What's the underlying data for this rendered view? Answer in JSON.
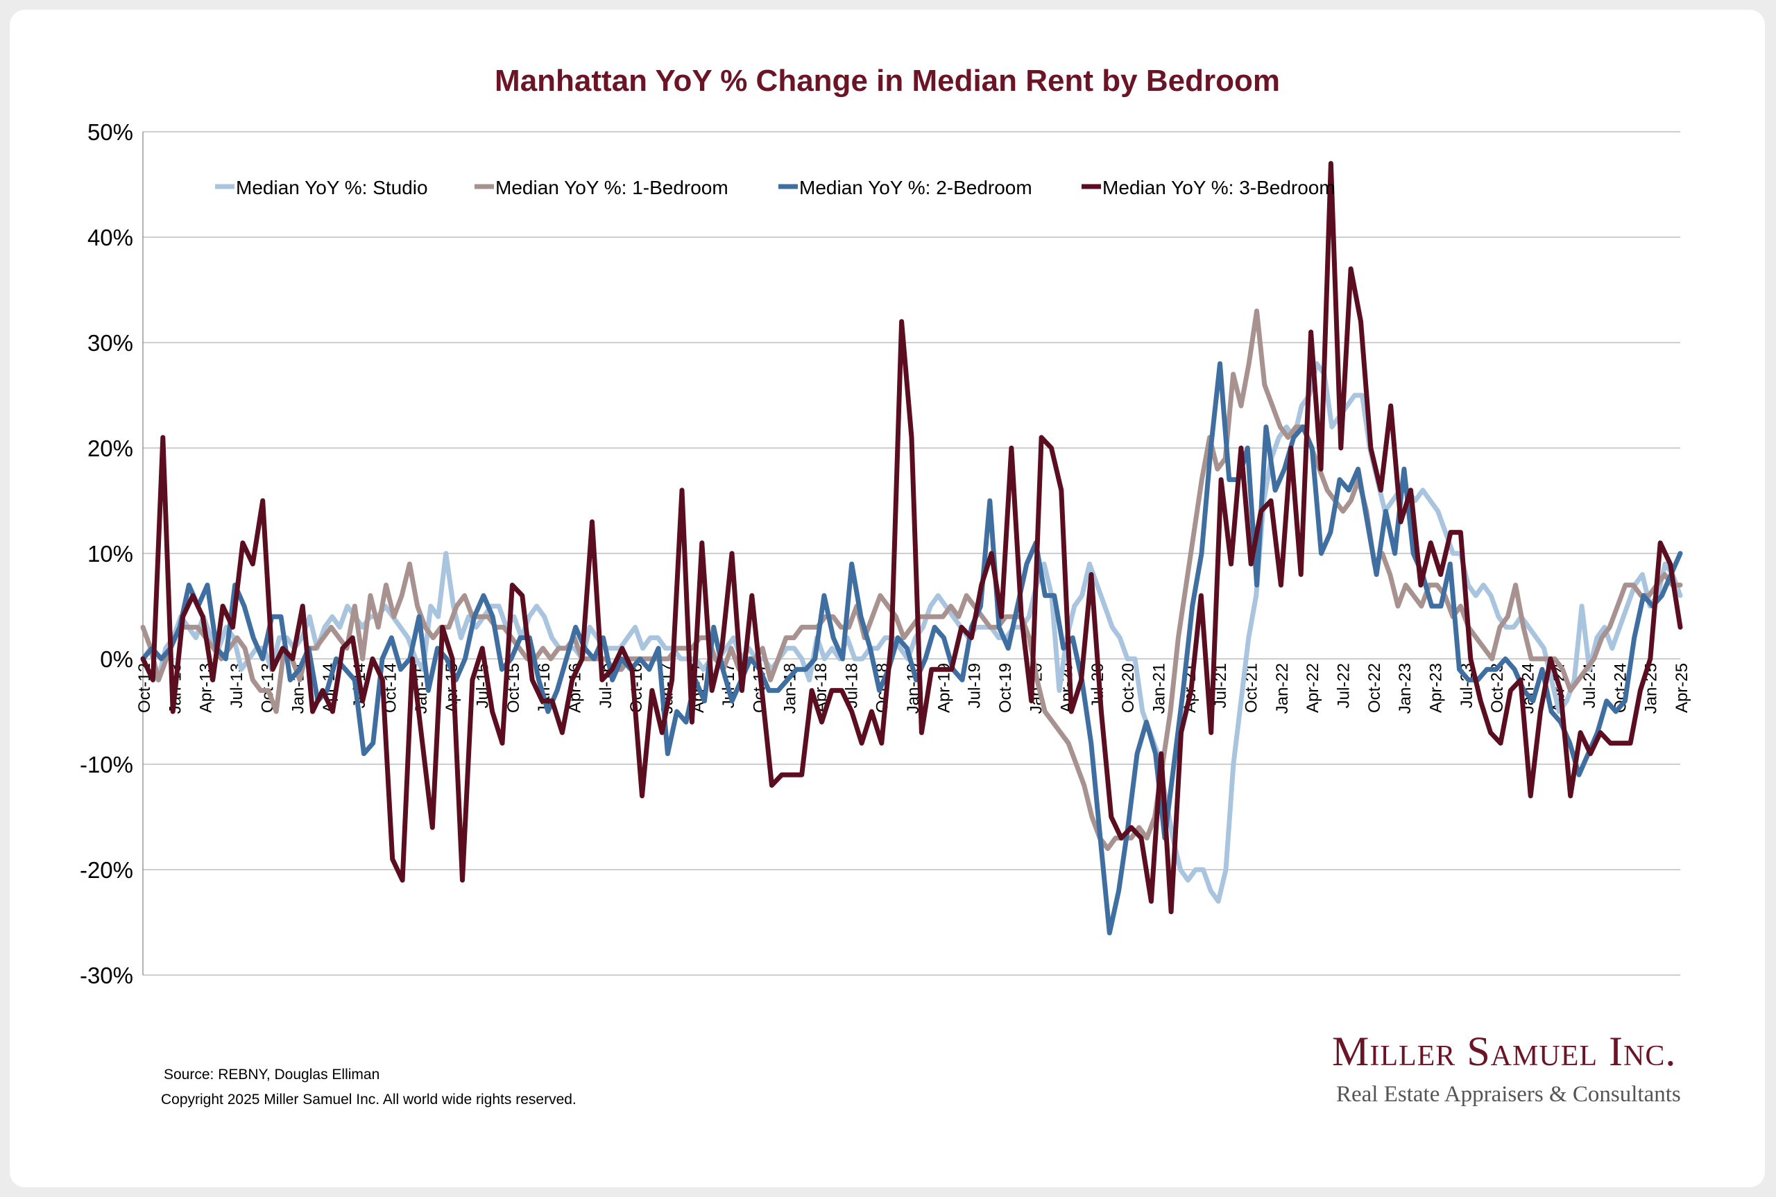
{
  "title": "Manhattan YoY % Change in Median Rent by Bedroom",
  "source": "Source: REBNY, Douglas Elliman",
  "copyright": "Copyright 2025 Miller Samuel Inc.  All world wide rights reserved.",
  "logo": {
    "name": "Miller Samuel Inc.",
    "tagline": "Real Estate Appraisers & Consultants"
  },
  "chart_data": {
    "type": "line",
    "title": "Manhattan YoY % Change in Median Rent by Bedroom",
    "xlabel": "",
    "ylabel": "",
    "ylim": [
      -30,
      50
    ],
    "y_ticks": [
      50,
      40,
      30,
      20,
      10,
      0,
      -10,
      -20,
      -30
    ],
    "y_tick_labels": [
      "50%",
      "40%",
      "30%",
      "20%",
      "10%",
      "0%",
      "-10%",
      "-20%",
      "-30%"
    ],
    "grid": true,
    "legend_position": "top",
    "x_start": "Oct-12",
    "x_end": "Apr-25",
    "x_tick_labels": [
      "Oct-12",
      "Jan-13",
      "Apr-13",
      "Jul-13",
      "Oct-13",
      "Jan-14",
      "Apr-14",
      "Jul-14",
      "Oct-14",
      "Jan-15",
      "Apr-15",
      "Jul-15",
      "Oct-15",
      "Jan-16",
      "Apr-16",
      "Jul-16",
      "Oct-16",
      "Jan-17",
      "Apr-17",
      "Jul-17",
      "Oct-17",
      "Jan-18",
      "Apr-18",
      "Jul-18",
      "Oct-18",
      "Jan-19",
      "Apr-19",
      "Jul-19",
      "Oct-19",
      "Jan-20",
      "Apr-20",
      "Jul-20",
      "Oct-20",
      "Jan-21",
      "Apr-21",
      "Jul-21",
      "Oct-21",
      "Jan-22",
      "Apr-22",
      "Jul-22",
      "Oct-22",
      "Jan-23",
      "Apr-23",
      "Jul-23",
      "Oct-23",
      "Jan-24",
      "Apr-24",
      "Jul-24",
      "Oct-24",
      "Jan-25",
      "Apr-25"
    ],
    "series": [
      {
        "name": "Median YoY %: Studio",
        "color": "#a9c4de",
        "values": [
          0,
          1,
          -2,
          1,
          2,
          4,
          3,
          2,
          4,
          2,
          1,
          3,
          2,
          -1,
          0,
          1,
          1,
          -1,
          2,
          2,
          1,
          2,
          4,
          1,
          3,
          4,
          3,
          5,
          4,
          3,
          4,
          4,
          5,
          4,
          3,
          2,
          0,
          -1,
          5,
          4,
          10,
          5,
          2,
          4,
          3,
          4,
          5,
          5,
          3,
          4,
          2,
          4,
          5,
          4,
          2,
          1,
          1,
          1,
          0,
          3,
          2,
          1,
          1,
          1,
          2,
          3,
          1,
          2,
          2,
          1,
          1,
          0,
          0,
          0,
          -1,
          0,
          0,
          1,
          2,
          0,
          1,
          0,
          0,
          -1,
          0,
          1,
          1,
          0,
          -2,
          2,
          0,
          1,
          0,
          2,
          0,
          0,
          1,
          1,
          2,
          2,
          1,
          0,
          2,
          3,
          5,
          6,
          5,
          4,
          3,
          2,
          3,
          3,
          3,
          2,
          2,
          3,
          3,
          4,
          7,
          9,
          6,
          -3,
          2,
          5,
          6,
          9,
          7,
          5,
          3,
          2,
          0,
          0,
          -5,
          -7,
          -9,
          -13,
          -17,
          -20,
          -21,
          -20,
          -20,
          -22,
          -23,
          -20,
          -10,
          -4,
          2,
          6,
          15,
          19,
          21,
          22,
          21,
          24,
          25,
          28,
          27,
          22,
          23,
          24,
          25,
          25,
          20,
          17,
          14,
          15,
          16,
          16,
          15,
          16,
          15,
          14,
          12,
          10,
          10,
          7,
          6,
          7,
          6,
          4,
          3,
          3,
          4,
          3,
          2,
          1,
          -2,
          -5,
          -4,
          -2,
          5,
          -1,
          2,
          3,
          1,
          3,
          5,
          7,
          8,
          5,
          6,
          9,
          8,
          6
        ],
        "x_tick_index_step": 3
      },
      {
        "name": "Median YoY %: 1-Bedroom",
        "color": "#a89290",
        "values": [
          3,
          1,
          -2,
          0,
          2,
          3,
          3,
          3,
          2,
          1,
          0,
          1,
          2,
          1,
          -2,
          -3,
          -3,
          -5,
          1,
          0,
          -2,
          1,
          1,
          2,
          3,
          2,
          1,
          5,
          0,
          6,
          3,
          7,
          4,
          6,
          9,
          5,
          3,
          2,
          3,
          3,
          5,
          6,
          4,
          4,
          4,
          3,
          3,
          2,
          1,
          0,
          0,
          1,
          0,
          1,
          1,
          2,
          0,
          0,
          0,
          0,
          -1,
          -1,
          0,
          0,
          0,
          0,
          0,
          0,
          1,
          1,
          1,
          2,
          2,
          0,
          -1,
          1,
          -1,
          0,
          0,
          1,
          -2,
          0,
          2,
          2,
          3,
          3,
          3,
          4,
          4,
          3,
          3,
          5,
          2,
          4,
          6,
          5,
          4,
          2,
          3,
          4,
          4,
          4,
          4,
          5,
          4,
          6,
          5,
          4,
          3,
          3,
          4,
          4,
          4,
          2,
          -2,
          -5,
          -6,
          -7,
          -8,
          -10,
          -12,
          -15,
          -17,
          -18,
          -17,
          -17,
          -17,
          -16,
          -17,
          -15,
          -10,
          -5,
          2,
          7,
          12,
          17,
          21,
          18,
          19,
          27,
          24,
          28,
          33,
          26,
          24,
          22,
          21,
          22,
          22,
          20,
          18,
          16,
          15,
          14,
          15,
          17,
          14,
          9,
          10,
          8,
          5,
          7,
          6,
          5,
          7,
          7,
          6,
          4,
          5,
          3,
          2,
          1,
          0,
          3,
          4,
          7,
          3,
          0,
          0,
          0,
          0,
          -1,
          -3,
          -2,
          -1,
          0,
          2,
          3,
          5,
          7,
          7,
          6,
          6,
          7,
          8,
          7,
          7
        ],
        "x_tick_index_step": 3
      },
      {
        "name": "Median YoY %: 2-Bedroom",
        "color": "#3f6fa0",
        "values": [
          0,
          1,
          0,
          1,
          3,
          7,
          5,
          7,
          1,
          0,
          7,
          5,
          2,
          0,
          4,
          4,
          -2,
          -1,
          1,
          -4,
          -3,
          0,
          -1,
          -2,
          -9,
          -8,
          0,
          2,
          -1,
          0,
          4,
          -3,
          1,
          0,
          -2,
          0,
          4,
          6,
          4,
          -1,
          0,
          2,
          2,
          -2,
          -5,
          -3,
          0,
          3,
          1,
          0,
          2,
          -2,
          0,
          -1,
          0,
          -1,
          1,
          -9,
          -5,
          -6,
          -2,
          -4,
          3,
          -1,
          -4,
          -2,
          0,
          -1,
          -3,
          -3,
          -2,
          -1,
          -1,
          0,
          6,
          2,
          0,
          9,
          4,
          1,
          -3,
          -1,
          2,
          1,
          -2,
          0,
          3,
          2,
          -1,
          -2,
          3,
          5,
          15,
          3,
          1,
          5,
          9,
          11,
          6,
          6,
          1,
          2,
          -2,
          -8,
          -17,
          -26,
          -22,
          -16,
          -9,
          -6,
          -9,
          -17,
          -10,
          -3,
          5,
          10,
          20,
          28,
          17,
          17,
          20,
          7,
          22,
          16,
          18,
          21,
          22,
          20,
          10,
          12,
          17,
          16,
          18,
          13,
          8,
          14,
          10,
          18,
          10,
          8,
          5,
          5,
          9,
          -1,
          -2,
          -2,
          -1,
          -1,
          0,
          -1,
          -3,
          -4,
          -1,
          -5,
          -6,
          -8,
          -11,
          -9,
          -7,
          -4,
          -5,
          -4,
          2,
          6,
          5,
          6,
          8,
          10
        ]
      },
      {
        "name": "Median YoY %: 3-Bedroom",
        "color": "#5b0e1f",
        "values": [
          0,
          -2,
          21,
          -5,
          4,
          6,
          4,
          -2,
          5,
          3,
          11,
          9,
          15,
          -1,
          1,
          0,
          5,
          -5,
          -3,
          -5,
          1,
          2,
          -4,
          0,
          -2,
          -19,
          -21,
          0,
          -8,
          -16,
          3,
          0,
          -21,
          -2,
          1,
          -5,
          -8,
          7,
          6,
          -2,
          -4,
          -4,
          -7,
          -2,
          0,
          13,
          -2,
          -1,
          1,
          -1,
          -13,
          -3,
          -7,
          -2,
          16,
          -6,
          11,
          -3,
          1,
          10,
          -3,
          6,
          -3,
          -12,
          -11,
          -11,
          -11,
          -3,
          -6,
          -3,
          -3,
          -5,
          -8,
          -5,
          -8,
          2,
          32,
          21,
          -7,
          -1,
          -1,
          -1,
          3,
          2,
          7,
          10,
          4,
          20,
          4,
          -4,
          21,
          20,
          16,
          -5,
          -2,
          8,
          -5,
          -15,
          -17,
          -16,
          -17,
          -23,
          -9,
          -24,
          -7,
          -3,
          6,
          -7,
          17,
          9,
          20,
          9,
          14,
          15,
          7,
          20,
          8,
          31,
          18,
          47,
          20,
          37,
          32,
          20,
          16,
          24,
          13,
          16,
          7,
          11,
          8,
          12,
          12,
          0,
          -4,
          -7,
          -8,
          -3,
          -2,
          -13,
          -5,
          0,
          -3,
          -13,
          -7,
          -9,
          -7,
          -8,
          -8,
          -8,
          -3,
          0,
          11,
          9,
          3
        ]
      }
    ]
  }
}
